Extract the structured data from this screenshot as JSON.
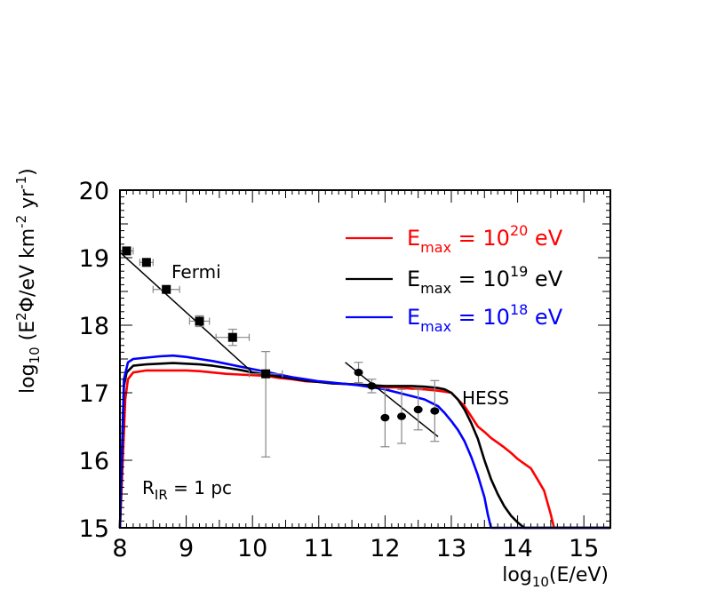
{
  "chart_data": {
    "type": "line",
    "xlabel": {
      "prefix": "log",
      "sub": "10",
      "rest": "(E/eV)"
    },
    "ylabel": {
      "prefix": "log",
      "sub": "10",
      "open": " (E",
      "sup1": "2",
      "mid": "Φ/eV km",
      "sup2": "-2",
      "mid2": " yr",
      "sup3": "-1",
      "close": ")"
    },
    "xlim": [
      8,
      15.4
    ],
    "ylim": [
      15,
      20
    ],
    "xticks": [
      8,
      9,
      10,
      11,
      12,
      13,
      14,
      15
    ],
    "yticks": [
      15,
      16,
      17,
      18,
      19,
      20
    ],
    "grid": false,
    "legend_position": "top-right",
    "series": [
      {
        "name": "E_max = 10^20 eV",
        "legend": {
          "base": "E",
          "sub": "max",
          "eq": " = 10",
          "sup": "20",
          "unit": " eV"
        },
        "color": "#ff0000",
        "x": [
          8.0,
          8.08,
          8.12,
          8.2,
          8.4,
          8.6,
          8.8,
          9.0,
          9.2,
          9.4,
          9.6,
          9.8,
          10.0,
          10.2,
          10.4,
          10.6,
          10.8,
          11.0,
          11.2,
          11.4,
          11.6,
          11.8,
          12.0,
          12.2,
          12.4,
          12.6,
          12.8,
          13.0,
          13.1,
          13.2,
          13.3,
          13.4,
          13.5,
          13.6,
          13.7,
          13.8,
          13.9,
          14.0,
          14.1,
          14.2,
          14.3,
          14.4,
          14.5,
          14.55,
          15.4
        ],
        "y": [
          15.0,
          16.9,
          17.2,
          17.3,
          17.33,
          17.33,
          17.33,
          17.33,
          17.32,
          17.3,
          17.28,
          17.27,
          17.26,
          17.25,
          17.22,
          17.2,
          17.17,
          17.16,
          17.14,
          17.13,
          17.12,
          17.1,
          17.08,
          17.08,
          17.06,
          17.05,
          17.03,
          17.0,
          16.9,
          16.8,
          16.65,
          16.5,
          16.42,
          16.33,
          16.26,
          16.19,
          16.11,
          16.02,
          15.95,
          15.88,
          15.72,
          15.55,
          15.2,
          15.0,
          15.0
        ]
      },
      {
        "name": "E_max = 10^19 eV",
        "legend": {
          "base": "E",
          "sub": "max",
          "eq": " = 10",
          "sup": "19",
          "unit": " eV"
        },
        "color": "#000000",
        "x": [
          8.0,
          8.06,
          8.1,
          8.2,
          8.4,
          8.6,
          8.8,
          9.0,
          9.2,
          9.4,
          9.6,
          9.8,
          10.0,
          10.2,
          10.4,
          10.6,
          10.8,
          11.0,
          11.2,
          11.4,
          11.6,
          11.8,
          12.0,
          12.2,
          12.4,
          12.6,
          12.8,
          12.9,
          13.0,
          13.1,
          13.2,
          13.3,
          13.4,
          13.5,
          13.6,
          13.7,
          13.8,
          13.9,
          14.0,
          14.1,
          15.4
        ],
        "y": [
          15.0,
          17.1,
          17.3,
          17.4,
          17.42,
          17.43,
          17.44,
          17.43,
          17.42,
          17.4,
          17.37,
          17.34,
          17.3,
          17.27,
          17.24,
          17.21,
          17.18,
          17.16,
          17.14,
          17.13,
          17.12,
          17.11,
          17.1,
          17.1,
          17.1,
          17.09,
          17.07,
          17.05,
          17.0,
          16.9,
          16.75,
          16.55,
          16.32,
          16.0,
          15.72,
          15.5,
          15.32,
          15.18,
          15.08,
          15.0,
          15.0
        ]
      },
      {
        "name": "E_max = 10^18 eV",
        "legend": {
          "base": "E",
          "sub": "max",
          "eq": " = 10",
          "sup": "18",
          "unit": " eV"
        },
        "color": "#0000ff",
        "x": [
          8.0,
          8.06,
          8.12,
          8.2,
          8.4,
          8.6,
          8.8,
          9.0,
          9.2,
          9.4,
          9.6,
          9.8,
          10.0,
          10.2,
          10.4,
          10.6,
          10.8,
          11.0,
          11.2,
          11.4,
          11.6,
          11.8,
          12.0,
          12.2,
          12.4,
          12.6,
          12.8,
          12.9,
          13.0,
          13.1,
          13.2,
          13.3,
          13.4,
          13.5,
          13.55,
          13.6,
          15.4
        ],
        "y": [
          15.0,
          17.2,
          17.45,
          17.5,
          17.52,
          17.54,
          17.55,
          17.53,
          17.5,
          17.47,
          17.43,
          17.39,
          17.35,
          17.31,
          17.27,
          17.23,
          17.2,
          17.17,
          17.15,
          17.13,
          17.11,
          17.08,
          17.05,
          17.0,
          16.95,
          16.9,
          16.8,
          16.7,
          16.58,
          16.45,
          16.28,
          16.05,
          15.78,
          15.45,
          15.2,
          15.0,
          15.0
        ]
      }
    ],
    "fermi_points": {
      "label": "Fermi",
      "points": [
        {
          "x": 8.1,
          "y": 19.1,
          "xerr": 0.1,
          "yerr": 0.03
        },
        {
          "x": 8.4,
          "y": 18.93,
          "xerr": 0.1,
          "yerr": 0.03
        },
        {
          "x": 8.7,
          "y": 18.53,
          "xerr": 0.2,
          "yerr": 0.05
        },
        {
          "x": 9.2,
          "y": 18.06,
          "xerr": 0.15,
          "yerr": 0.08
        },
        {
          "x": 9.7,
          "y": 17.82,
          "xerr": 0.25,
          "yerr": 0.12
        },
        {
          "x": 10.2,
          "y": 17.28,
          "xerr": 0.25,
          "yerr_up": 0.33,
          "yerr_down": 1.23
        }
      ],
      "fit": {
        "x": [
          8.0,
          10.0
        ],
        "y": [
          19.08,
          17.3
        ]
      }
    },
    "hess_points": {
      "label": "HESS",
      "points": [
        {
          "x": 11.6,
          "y": 17.3,
          "yerr": 0.15
        },
        {
          "x": 11.8,
          "y": 17.1,
          "yerr": 0.1
        },
        {
          "x": 12.0,
          "y": 16.63,
          "yerr": 0.43
        },
        {
          "x": 12.25,
          "y": 16.65,
          "yerr": 0.4
        },
        {
          "x": 12.5,
          "y": 16.75,
          "yerr": 0.3
        },
        {
          "x": 12.75,
          "y": 16.73,
          "yerr": 0.45
        }
      ],
      "fit": {
        "x": [
          11.4,
          12.8
        ],
        "y": [
          17.45,
          16.35
        ]
      }
    },
    "annotation": {
      "base": "R",
      "sub": "IR",
      "rest": " = 1 pc"
    }
  }
}
